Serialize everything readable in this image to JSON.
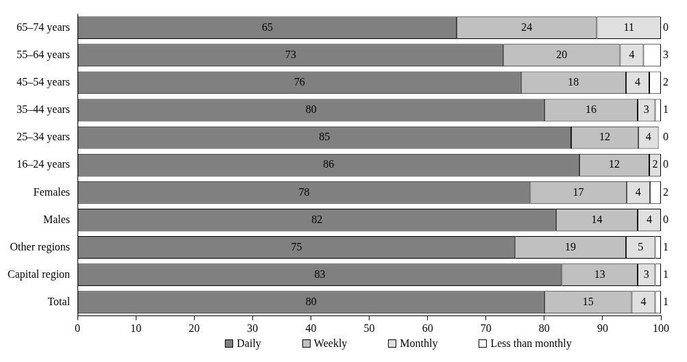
{
  "chart_data": {
    "type": "bar",
    "orientation": "horizontal",
    "stacked": true,
    "categories": [
      "65–74 years",
      "55–64 years",
      "45–54 years",
      "35–44 years",
      "25–34 years",
      "16–24 years",
      "Females",
      "Males",
      "Other regions",
      "Capital region",
      "Total"
    ],
    "series": [
      {
        "name": "Daily",
        "color": "#808080",
        "values": [
          65,
          73,
          76,
          80,
          84.6,
          86,
          77.6,
          82,
          75,
          83,
          80
        ],
        "value_labels": [
          "65",
          "73",
          "76",
          "80",
          "85",
          "86",
          "78",
          "82",
          "75",
          "83",
          "80"
        ]
      },
      {
        "name": "Weekly",
        "color": "#c0c0c0",
        "values": [
          24,
          20,
          18,
          16,
          11.5,
          12,
          16.5,
          14,
          19,
          13,
          15
        ],
        "value_labels": [
          "24",
          "20",
          "18",
          "16",
          "12",
          "12",
          "17",
          "14",
          "19",
          "13",
          "15"
        ]
      },
      {
        "name": "Monthly",
        "color": "#e0e0e0",
        "values": [
          11,
          4,
          4,
          3,
          3.5,
          2,
          4,
          4,
          5,
          3,
          4
        ],
        "value_labels": [
          "11",
          "4",
          "4",
          "3",
          "4",
          "2",
          "4",
          "4",
          "5",
          "3",
          "4"
        ]
      },
      {
        "name": "Less than monthly",
        "color": "#ffffff",
        "values": [
          0,
          3,
          2,
          1,
          0,
          0,
          1.9,
          0,
          1,
          1,
          1
        ],
        "value_labels": [
          "0",
          "3",
          "2",
          "1",
          "0",
          "0",
          "2",
          "0",
          "1",
          "1",
          "1"
        ]
      }
    ],
    "xlim": [
      0,
      100
    ],
    "xticks": [
      0,
      10,
      20,
      30,
      40,
      50,
      60,
      70,
      80,
      90,
      100
    ],
    "grid": false,
    "legend": "bottom"
  }
}
